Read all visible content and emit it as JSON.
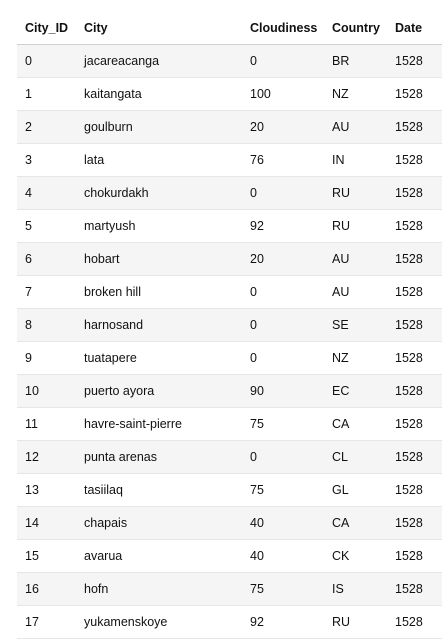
{
  "table": {
    "columns": [
      "City_ID",
      "City",
      "Cloudiness",
      "Country",
      "Date"
    ],
    "rows": [
      [
        "0",
        "jacareacanga",
        "0",
        "BR",
        "1528"
      ],
      [
        "1",
        "kaitangata",
        "100",
        "NZ",
        "1528"
      ],
      [
        "2",
        "goulburn",
        "20",
        "AU",
        "1528"
      ],
      [
        "3",
        "lata",
        "76",
        "IN",
        "1528"
      ],
      [
        "4",
        "chokurdakh",
        "0",
        "RU",
        "1528"
      ],
      [
        "5",
        "martyush",
        "92",
        "RU",
        "1528"
      ],
      [
        "6",
        "hobart",
        "20",
        "AU",
        "1528"
      ],
      [
        "7",
        "broken hill",
        "0",
        "AU",
        "1528"
      ],
      [
        "8",
        "harnosand",
        "0",
        "SE",
        "1528"
      ],
      [
        "9",
        "tuatapere",
        "0",
        "NZ",
        "1528"
      ],
      [
        "10",
        "puerto ayora",
        "90",
        "EC",
        "1528"
      ],
      [
        "11",
        "havre-saint-pierre",
        "75",
        "CA",
        "1528"
      ],
      [
        "12",
        "punta arenas",
        "0",
        "CL",
        "1528"
      ],
      [
        "13",
        "tasiilaq",
        "75",
        "GL",
        "1528"
      ],
      [
        "14",
        "chapais",
        "40",
        "CA",
        "1528"
      ],
      [
        "15",
        "avarua",
        "40",
        "CK",
        "1528"
      ],
      [
        "16",
        "hofn",
        "75",
        "IS",
        "1528"
      ],
      [
        "17",
        "yukamenskoye",
        "92",
        "RU",
        "1528"
      ]
    ]
  }
}
